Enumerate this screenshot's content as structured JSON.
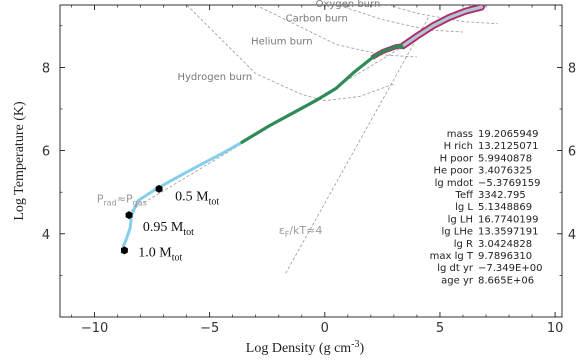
{
  "chart_data": {
    "type": "line",
    "xlabel": "Log Density (g cm",
    "xlabel_sup": "-3",
    "xlabel_close": ")",
    "ylabel": "Log Temperature (K)",
    "xlim": [
      -11.5,
      10.3
    ],
    "ylim": [
      2.0,
      9.5
    ],
    "x_ticks": [
      -10,
      -5,
      0,
      5,
      10
    ],
    "x_tick_labels": [
      "−10",
      "−5",
      "0",
      "5",
      "10"
    ],
    "y_ticks": [
      4,
      6,
      8
    ],
    "y_tick_labels": [
      "4",
      "6",
      "8"
    ],
    "burn_lines": [
      {
        "label": "Hydrogen burn",
        "points": [
          [
            -6.0,
            9.5
          ],
          [
            -3.0,
            7.85
          ],
          [
            -1.0,
            7.35
          ],
          [
            0.0,
            7.2
          ],
          [
            1.5,
            7.3
          ],
          [
            3.0,
            7.6
          ]
        ]
      },
      {
        "label": "Helium burn",
        "points": [
          [
            -3.0,
            9.5
          ],
          [
            0.5,
            8.55
          ],
          [
            2.5,
            8.3
          ],
          [
            4.0,
            8.25
          ]
        ]
      },
      {
        "label": "Carbon burn",
        "points": [
          [
            0.0,
            9.6
          ],
          [
            2.5,
            9.15
          ],
          [
            4.5,
            8.9
          ],
          [
            6.0,
            8.85
          ]
        ]
      },
      {
        "label": "Oxygen burn",
        "points": [
          [
            1.5,
            9.7
          ],
          [
            4.0,
            9.3
          ],
          [
            6.0,
            9.1
          ],
          [
            7.5,
            9.05
          ]
        ]
      }
    ],
    "guide_lines": [
      {
        "label": "Prad≈Pgas",
        "label_main": "P",
        "label_sub1": "rad",
        "label_mid": "≈P",
        "label_sub2": "gas",
        "points": [
          [
            -8.6,
            4.5
          ],
          [
            10.3,
            10.8
          ]
        ]
      },
      {
        "label": "εF/kT≈4",
        "label_main": "ε",
        "label_sub1": "F",
        "label_mid": "/kT≈4",
        "points": [
          [
            -1.7,
            3.05
          ],
          [
            4.5,
            9.2
          ]
        ]
      }
    ],
    "series": [
      {
        "color": "#87ceeb",
        "points": [
          [
            -8.8,
            3.55
          ],
          [
            -8.75,
            3.7
          ],
          [
            -8.6,
            3.9
          ],
          [
            -8.45,
            4.15
          ],
          [
            -8.4,
            4.45
          ],
          [
            -8.1,
            4.8
          ],
          [
            -7.4,
            5.05
          ],
          [
            -6.6,
            5.3
          ],
          [
            -5.6,
            5.6
          ],
          [
            -4.4,
            5.95
          ],
          [
            -3.6,
            6.2
          ]
        ]
      },
      {
        "color": "#2e8b57",
        "points": [
          [
            -3.6,
            6.2
          ],
          [
            -2.4,
            6.6
          ],
          [
            -1.4,
            6.9
          ],
          [
            -0.4,
            7.2
          ],
          [
            0.5,
            7.5
          ],
          [
            1.3,
            7.9
          ],
          [
            2.1,
            8.25
          ],
          [
            2.5,
            8.38
          ],
          [
            3.1,
            8.5
          ],
          [
            3.4,
            8.52
          ]
        ]
      },
      {
        "color": "#b0c4de",
        "points": [
          [
            3.4,
            8.52
          ],
          [
            4.0,
            8.75
          ],
          [
            4.7,
            9.0
          ],
          [
            5.4,
            9.2
          ],
          [
            6.1,
            9.35
          ],
          [
            6.8,
            9.45
          ]
        ]
      }
    ],
    "masses": [
      {
        "label": "0.5 M",
        "sub": "tot",
        "point": [
          -7.2,
          5.08
        ]
      },
      {
        "label": "0.95 M",
        "sub": "tot",
        "point": [
          -8.5,
          4.45
        ]
      },
      {
        "label": "1.0 M",
        "sub": "tot",
        "point": [
          -8.7,
          3.6
        ]
      }
    ],
    "info_panel": [
      {
        "key": "mass",
        "value": "19.2065949"
      },
      {
        "key": "H rich",
        "value": "13.2125071"
      },
      {
        "key": "H poor",
        "value": "5.9940878"
      },
      {
        "key": "He poor",
        "value": "3.4076325"
      },
      {
        "key": "lg mdot",
        "value": "−5.3769159"
      },
      {
        "key": "Teff",
        "value": "3342.795"
      },
      {
        "key": "lg L",
        "value": "5.1348869"
      },
      {
        "key": "lg LH",
        "value": "16.7740199"
      },
      {
        "key": "lg LHe",
        "value": "13.3597191"
      },
      {
        "key": "lg R",
        "value": "3.0424828"
      },
      {
        "key": "max lg T",
        "value": "9.7896310"
      },
      {
        "key": "lg dt yr",
        "value": "−7.349E+00"
      },
      {
        "key": "age yr",
        "value": "8.665E+06"
      }
    ]
  }
}
